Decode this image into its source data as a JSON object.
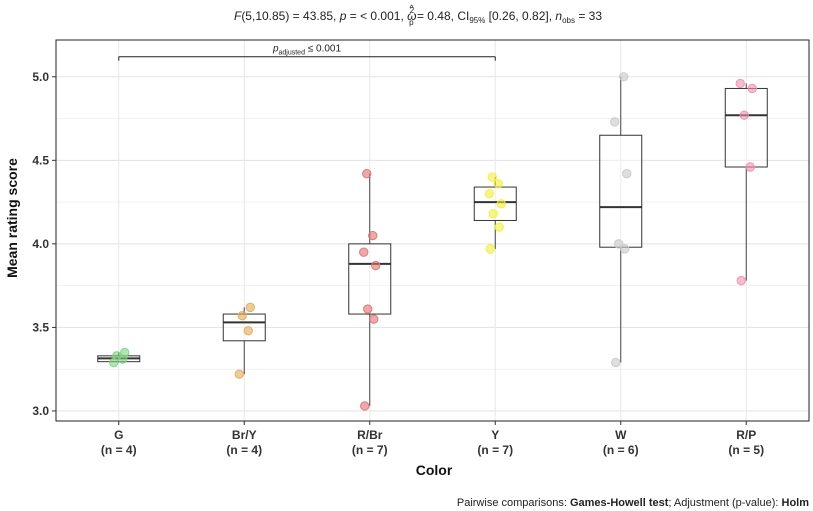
{
  "subtitle": {
    "F_label": "F",
    "F_args": "(5,10.85) = 43.85, ",
    "p_label": "p",
    "p_text": " = < 0.001, ",
    "omega_sym": "ω",
    "omega_hat": "^",
    "omega_sup": "2",
    "omega_sub": "p",
    "omega_text": " = 0.48, CI",
    "ci_sub": "95%",
    "ci_text": " [0.26, 0.82], ",
    "n_label": "n",
    "n_sub": "obs",
    "n_text": " = 33"
  },
  "caption": {
    "prefix": "Pairwise comparisons: ",
    "test": "Games-Howell test",
    "middle": "; Adjustment (p-value): ",
    "adjust": "Holm"
  },
  "chart_data": {
    "type": "boxplot",
    "xlabel": "Color",
    "ylabel": "Mean rating score",
    "ylim": [
      2.94,
      5.22
    ],
    "yticks": [
      3.0,
      3.5,
      4.0,
      4.5,
      5.0
    ],
    "ytick_labels": [
      "3.0",
      "3.5",
      "4.0",
      "4.5",
      "5.0"
    ],
    "grid": true,
    "categories": [
      "G",
      "Br/Y",
      "R/Br",
      "Y",
      "W",
      "R/P"
    ],
    "category_n": [
      "(n = 4)",
      "(n = 4)",
      "(n = 7)",
      "(n = 7)",
      "(n = 6)",
      "(n = 5)"
    ],
    "groups": [
      {
        "name": "G",
        "color": "#7FD17F",
        "min": 3.29,
        "q1": 3.295,
        "median": 3.315,
        "q3": 3.33,
        "max": 3.35,
        "points": [
          3.29,
          3.31,
          3.33,
          3.35
        ]
      },
      {
        "name": "Br/Y",
        "color": "#E3A857",
        "min": 3.22,
        "q1": 3.42,
        "median": 3.53,
        "q3": 3.58,
        "max": 3.62,
        "points": [
          3.22,
          3.48,
          3.57,
          3.62
        ]
      },
      {
        "name": "R/Br",
        "color": "#E07070",
        "min": 3.03,
        "q1": 3.58,
        "median": 3.88,
        "q3": 4.0,
        "max": 4.42,
        "points": [
          3.03,
          3.55,
          3.61,
          3.87,
          3.95,
          4.05,
          4.42
        ]
      },
      {
        "name": "Y",
        "color": "#F2EE3A",
        "min": 3.97,
        "q1": 4.14,
        "median": 4.25,
        "q3": 4.34,
        "max": 4.4,
        "points": [
          3.97,
          4.1,
          4.18,
          4.24,
          4.3,
          4.36,
          4.4
        ]
      },
      {
        "name": "W",
        "color": "#C8C8C8",
        "min": 3.29,
        "q1": 3.98,
        "median": 4.22,
        "q3": 4.65,
        "max": 5.0,
        "points": [
          3.29,
          3.97,
          4.0,
          4.42,
          4.73,
          5.0
        ]
      },
      {
        "name": "R/P",
        "color": "#F08FB0",
        "min": 3.78,
        "q1": 4.46,
        "median": 4.77,
        "q3": 4.93,
        "max": 4.96,
        "points": [
          3.78,
          4.46,
          4.77,
          4.93,
          4.96
        ]
      }
    ],
    "comparisons": [
      {
        "from": "G",
        "to": "Y",
        "y": 5.12,
        "label_main": "p",
        "label_sub": "adjusted",
        "label_rest": " ≤ 0.001"
      }
    ]
  }
}
